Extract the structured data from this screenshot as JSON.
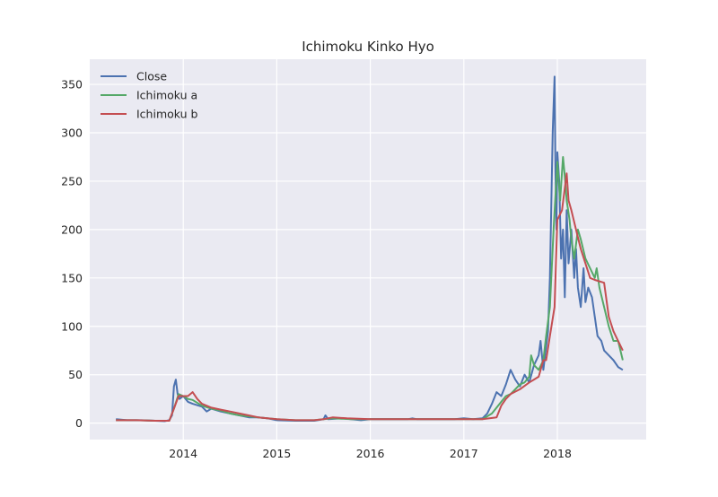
{
  "chart_data": {
    "type": "line",
    "title": "Ichimoku Kinko Hyo",
    "xlabel": "",
    "ylabel": "",
    "xlim": [
      2013.0,
      2018.95
    ],
    "ylim": [
      -17,
      376
    ],
    "x_ticks": [
      {
        "value": 2014,
        "label": "2014"
      },
      {
        "value": 2015,
        "label": "2015"
      },
      {
        "value": 2016,
        "label": "2016"
      },
      {
        "value": 2017,
        "label": "2017"
      },
      {
        "value": 2018,
        "label": "2018"
      }
    ],
    "y_ticks": [
      {
        "value": 0,
        "label": "0"
      },
      {
        "value": 50,
        "label": "50"
      },
      {
        "value": 100,
        "label": "100"
      },
      {
        "value": 150,
        "label": "150"
      },
      {
        "value": 200,
        "label": "200"
      },
      {
        "value": 250,
        "label": "250"
      },
      {
        "value": 300,
        "label": "300"
      },
      {
        "value": 350,
        "label": "350"
      }
    ],
    "grid": true,
    "legend": "top-left",
    "series": [
      {
        "name": "Close",
        "color": "#4c72b0",
        "points": [
          [
            2013.28,
            4
          ],
          [
            2013.4,
            3
          ],
          [
            2013.55,
            3
          ],
          [
            2013.7,
            2.5
          ],
          [
            2013.8,
            2
          ],
          [
            2013.85,
            3
          ],
          [
            2013.88,
            8
          ],
          [
            2013.9,
            38
          ],
          [
            2013.92,
            45
          ],
          [
            2013.94,
            30
          ],
          [
            2013.96,
            25
          ],
          [
            2014.0,
            28
          ],
          [
            2014.05,
            22
          ],
          [
            2014.1,
            20
          ],
          [
            2014.2,
            17
          ],
          [
            2014.25,
            12
          ],
          [
            2014.3,
            15
          ],
          [
            2014.4,
            12
          ],
          [
            2014.5,
            10
          ],
          [
            2014.6,
            8
          ],
          [
            2014.7,
            6
          ],
          [
            2014.8,
            6
          ],
          [
            2014.9,
            5
          ],
          [
            2015.0,
            3
          ],
          [
            2015.2,
            2.5
          ],
          [
            2015.4,
            2.5
          ],
          [
            2015.5,
            4
          ],
          [
            2015.52,
            8
          ],
          [
            2015.55,
            4
          ],
          [
            2015.7,
            5
          ],
          [
            2015.9,
            3
          ],
          [
            2016.0,
            4
          ],
          [
            2016.2,
            4
          ],
          [
            2016.4,
            4
          ],
          [
            2016.45,
            5
          ],
          [
            2016.5,
            4
          ],
          [
            2016.7,
            4
          ],
          [
            2016.9,
            4
          ],
          [
            2017.0,
            5
          ],
          [
            2017.1,
            4
          ],
          [
            2017.2,
            5
          ],
          [
            2017.25,
            10
          ],
          [
            2017.3,
            20
          ],
          [
            2017.35,
            32
          ],
          [
            2017.4,
            28
          ],
          [
            2017.45,
            40
          ],
          [
            2017.5,
            55
          ],
          [
            2017.55,
            45
          ],
          [
            2017.6,
            38
          ],
          [
            2017.65,
            50
          ],
          [
            2017.7,
            42
          ],
          [
            2017.75,
            60
          ],
          [
            2017.8,
            70
          ],
          [
            2017.82,
            85
          ],
          [
            2017.85,
            55
          ],
          [
            2017.9,
            95
          ],
          [
            2017.92,
            150
          ],
          [
            2017.95,
            300
          ],
          [
            2017.97,
            358
          ],
          [
            2017.98,
            260
          ],
          [
            2017.99,
            200
          ],
          [
            2018.0,
            280
          ],
          [
            2018.02,
            250
          ],
          [
            2018.04,
            170
          ],
          [
            2018.06,
            200
          ],
          [
            2018.08,
            130
          ],
          [
            2018.1,
            220
          ],
          [
            2018.12,
            165
          ],
          [
            2018.15,
            200
          ],
          [
            2018.18,
            150
          ],
          [
            2018.2,
            180
          ],
          [
            2018.22,
            140
          ],
          [
            2018.25,
            120
          ],
          [
            2018.28,
            160
          ],
          [
            2018.3,
            125
          ],
          [
            2018.33,
            140
          ],
          [
            2018.37,
            130
          ],
          [
            2018.4,
            110
          ],
          [
            2018.43,
            90
          ],
          [
            2018.47,
            85
          ],
          [
            2018.5,
            75
          ],
          [
            2018.55,
            70
          ],
          [
            2018.6,
            65
          ],
          [
            2018.65,
            58
          ],
          [
            2018.7,
            55
          ]
        ]
      },
      {
        "name": "Ichimoku a",
        "color": "#55a868",
        "points": [
          [
            2013.28,
            3
          ],
          [
            2013.5,
            3
          ],
          [
            2013.7,
            2.5
          ],
          [
            2013.85,
            2.5
          ],
          [
            2013.9,
            15
          ],
          [
            2013.95,
            30
          ],
          [
            2014.0,
            28
          ],
          [
            2014.05,
            25
          ],
          [
            2014.1,
            24
          ],
          [
            2014.2,
            18
          ],
          [
            2014.3,
            15
          ],
          [
            2014.4,
            13
          ],
          [
            2014.5,
            10
          ],
          [
            2014.6,
            8
          ],
          [
            2014.7,
            7
          ],
          [
            2014.8,
            6
          ],
          [
            2014.9,
            5
          ],
          [
            2015.0,
            4
          ],
          [
            2015.2,
            3
          ],
          [
            2015.4,
            3
          ],
          [
            2015.5,
            4
          ],
          [
            2015.6,
            5
          ],
          [
            2015.8,
            4
          ],
          [
            2016.0,
            4
          ],
          [
            2016.3,
            4
          ],
          [
            2016.5,
            4
          ],
          [
            2016.8,
            4
          ],
          [
            2017.0,
            4
          ],
          [
            2017.2,
            4
          ],
          [
            2017.3,
            10
          ],
          [
            2017.4,
            22
          ],
          [
            2017.45,
            28
          ],
          [
            2017.5,
            30
          ],
          [
            2017.55,
            35
          ],
          [
            2017.6,
            40
          ],
          [
            2017.65,
            42
          ],
          [
            2017.7,
            48
          ],
          [
            2017.72,
            70
          ],
          [
            2017.75,
            60
          ],
          [
            2017.8,
            55
          ],
          [
            2017.85,
            65
          ],
          [
            2017.88,
            90
          ],
          [
            2017.92,
            120
          ],
          [
            2017.96,
            200
          ],
          [
            2018.0,
            270
          ],
          [
            2018.03,
            230
          ],
          [
            2018.06,
            275
          ],
          [
            2018.08,
            255
          ],
          [
            2018.1,
            230
          ],
          [
            2018.13,
            210
          ],
          [
            2018.15,
            190
          ],
          [
            2018.18,
            170
          ],
          [
            2018.22,
            200
          ],
          [
            2018.25,
            190
          ],
          [
            2018.3,
            170
          ],
          [
            2018.35,
            160
          ],
          [
            2018.4,
            150
          ],
          [
            2018.42,
            160
          ],
          [
            2018.45,
            140
          ],
          [
            2018.5,
            120
          ],
          [
            2018.55,
            100
          ],
          [
            2018.6,
            85
          ],
          [
            2018.65,
            85
          ],
          [
            2018.7,
            65
          ]
        ]
      },
      {
        "name": "Ichimoku b",
        "color": "#c44e52",
        "points": [
          [
            2013.28,
            3
          ],
          [
            2013.5,
            3
          ],
          [
            2013.7,
            2.5
          ],
          [
            2013.85,
            2.5
          ],
          [
            2013.9,
            15
          ],
          [
            2013.95,
            28
          ],
          [
            2014.0,
            28
          ],
          [
            2014.05,
            28
          ],
          [
            2014.1,
            32
          ],
          [
            2014.15,
            25
          ],
          [
            2014.2,
            20
          ],
          [
            2014.3,
            16
          ],
          [
            2014.4,
            14
          ],
          [
            2014.5,
            12
          ],
          [
            2014.6,
            10
          ],
          [
            2014.7,
            8
          ],
          [
            2014.8,
            6
          ],
          [
            2014.9,
            5
          ],
          [
            2015.0,
            4
          ],
          [
            2015.2,
            3
          ],
          [
            2015.4,
            3
          ],
          [
            2015.5,
            4
          ],
          [
            2015.6,
            6
          ],
          [
            2015.75,
            5
          ],
          [
            2016.0,
            4
          ],
          [
            2016.3,
            4
          ],
          [
            2016.5,
            4
          ],
          [
            2016.8,
            4
          ],
          [
            2017.0,
            4
          ],
          [
            2017.2,
            4
          ],
          [
            2017.35,
            6
          ],
          [
            2017.4,
            18
          ],
          [
            2017.45,
            25
          ],
          [
            2017.5,
            30
          ],
          [
            2017.6,
            35
          ],
          [
            2017.7,
            42
          ],
          [
            2017.75,
            45
          ],
          [
            2017.8,
            48
          ],
          [
            2017.85,
            65
          ],
          [
            2017.88,
            65
          ],
          [
            2017.92,
            90
          ],
          [
            2017.97,
            120
          ],
          [
            2018.0,
            210
          ],
          [
            2018.05,
            220
          ],
          [
            2018.1,
            258
          ],
          [
            2018.12,
            230
          ],
          [
            2018.15,
            220
          ],
          [
            2018.2,
            200
          ],
          [
            2018.25,
            180
          ],
          [
            2018.3,
            165
          ],
          [
            2018.35,
            150
          ],
          [
            2018.4,
            148
          ],
          [
            2018.5,
            145
          ],
          [
            2018.55,
            110
          ],
          [
            2018.6,
            95
          ],
          [
            2018.65,
            85
          ],
          [
            2018.7,
            75
          ]
        ]
      }
    ]
  }
}
